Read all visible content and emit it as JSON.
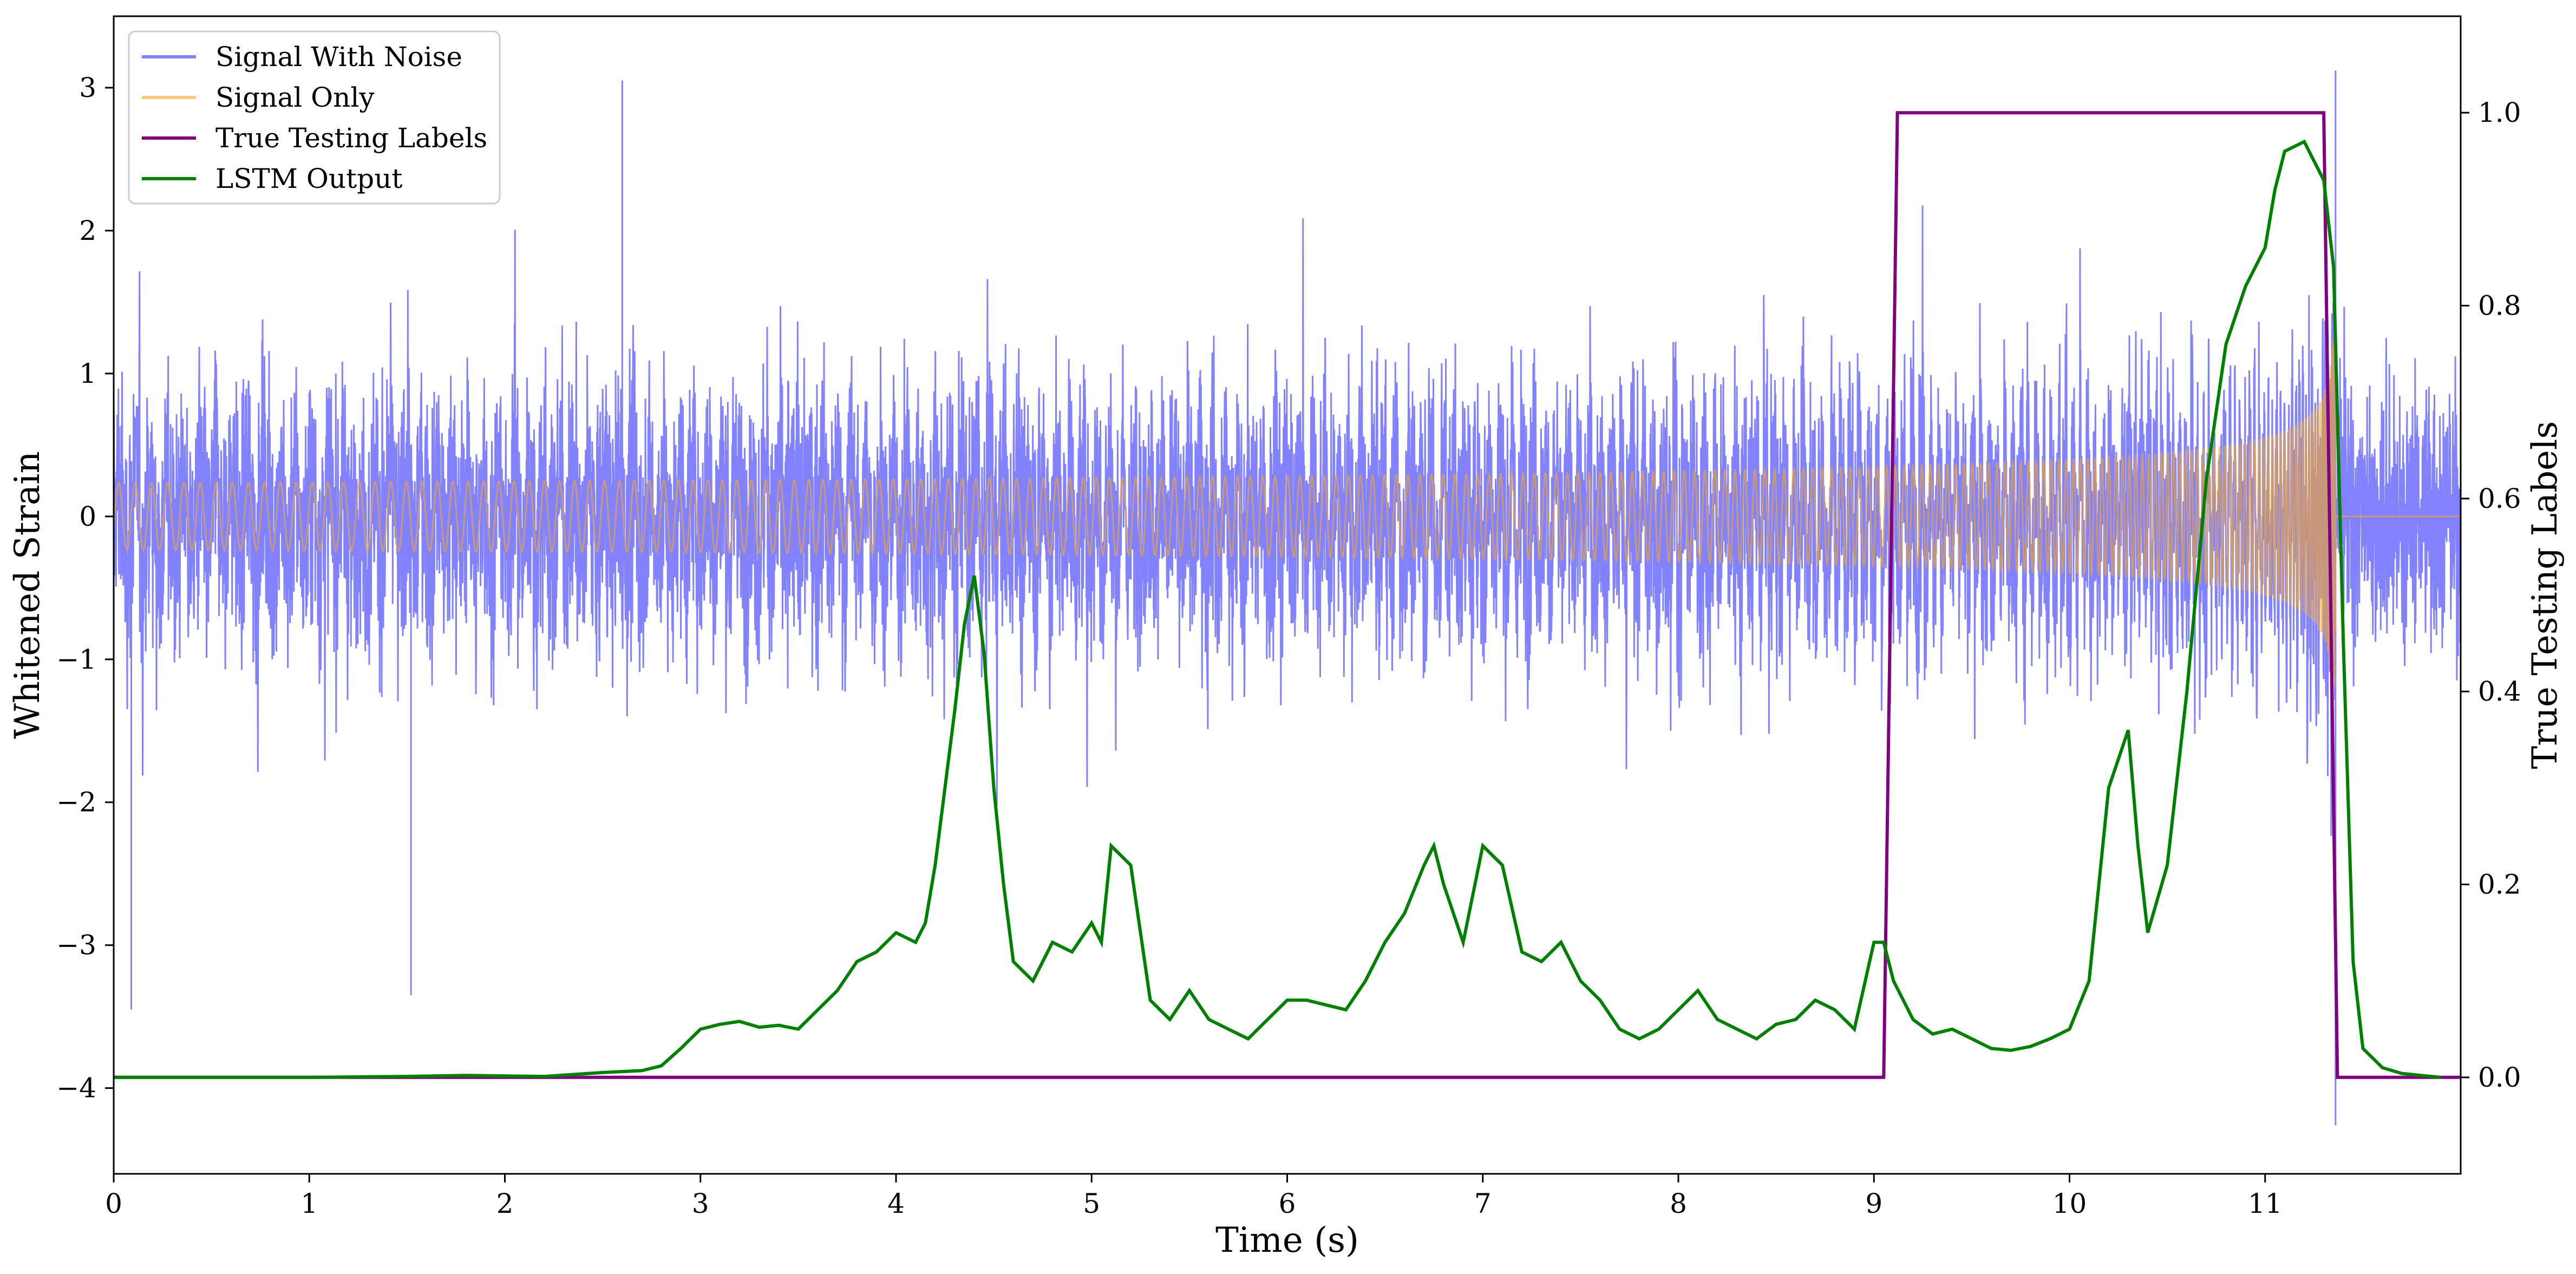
{
  "chart_data": {
    "type": "line",
    "xlabel": "Time (s)",
    "ylabel_left": "Whitened Strain",
    "ylabel_right": "True Testing Labels",
    "xlim": [
      0,
      12
    ],
    "ylim_left": [
      -4.6,
      3.5
    ],
    "ylim_right": [
      -0.1,
      1.1
    ],
    "x_ticks": [
      0,
      1,
      2,
      3,
      4,
      5,
      6,
      7,
      8,
      9,
      10,
      11
    ],
    "y_ticks_left": [
      -4,
      -3,
      -2,
      -1,
      0,
      1,
      2,
      3
    ],
    "y_ticks_right": [
      0.0,
      0.2,
      0.4,
      0.6,
      0.8,
      1.0
    ],
    "legend_position": "upper-left",
    "grid": false,
    "series": [
      {
        "name": "Signal With Noise",
        "axis": "left",
        "color": "#7b7bff",
        "description_values": {
          "typical_range": [
            -1.5,
            1.5
          ],
          "extremes": [
            {
              "x": 0.09,
              "y": -3.45
            },
            {
              "x": 1.52,
              "y": -3.35
            },
            {
              "x": 2.6,
              "y": 3.05
            },
            {
              "x": 11.36,
              "y": 3.12
            },
            {
              "x": 11.36,
              "y": -4.26
            }
          ]
        }
      },
      {
        "name": "Signal Only",
        "axis": "left",
        "color": "#f5a623",
        "chirp": {
          "t_start": 0,
          "t_merge": 11.36,
          "amp_start": 0.02,
          "amp_merge": 1.3
        }
      },
      {
        "name": "True Testing Labels",
        "axis": "right",
        "color": "#800080",
        "x": [
          0,
          9.05,
          9.12,
          11.3,
          11.37,
          12
        ],
        "y": [
          0,
          0,
          1,
          1,
          0,
          0
        ]
      },
      {
        "name": "LSTM Output",
        "axis": "right",
        "color": "#008000",
        "x": [
          0,
          1,
          1.5,
          1.8,
          2.2,
          2.5,
          2.6,
          2.7,
          2.8,
          2.9,
          3.0,
          3.1,
          3.2,
          3.3,
          3.4,
          3.5,
          3.6,
          3.7,
          3.8,
          3.9,
          4.0,
          4.1,
          4.15,
          4.2,
          4.3,
          4.35,
          4.4,
          4.45,
          4.5,
          4.55,
          4.6,
          4.7,
          4.8,
          4.9,
          5.0,
          5.05,
          5.1,
          5.2,
          5.3,
          5.4,
          5.5,
          5.6,
          5.7,
          5.8,
          5.9,
          6.0,
          6.1,
          6.2,
          6.3,
          6.4,
          6.5,
          6.6,
          6.7,
          6.75,
          6.8,
          6.9,
          7.0,
          7.1,
          7.2,
          7.3,
          7.4,
          7.5,
          7.6,
          7.7,
          7.8,
          7.9,
          8.0,
          8.1,
          8.2,
          8.3,
          8.4,
          8.5,
          8.6,
          8.7,
          8.8,
          8.9,
          9.0,
          9.05,
          9.1,
          9.2,
          9.3,
          9.4,
          9.5,
          9.6,
          9.7,
          9.8,
          9.9,
          10.0,
          10.1,
          10.2,
          10.3,
          10.35,
          10.4,
          10.5,
          10.6,
          10.7,
          10.8,
          10.9,
          11.0,
          11.05,
          11.1,
          11.2,
          11.3,
          11.35,
          11.4,
          11.45,
          11.5,
          11.6,
          11.7,
          11.8,
          11.9
        ],
        "y": [
          0,
          0,
          0.001,
          0.002,
          0.001,
          0.005,
          0.006,
          0.007,
          0.012,
          0.03,
          0.05,
          0.055,
          0.058,
          0.052,
          0.054,
          0.05,
          0.07,
          0.09,
          0.12,
          0.13,
          0.15,
          0.14,
          0.16,
          0.22,
          0.38,
          0.47,
          0.52,
          0.44,
          0.3,
          0.2,
          0.12,
          0.1,
          0.14,
          0.13,
          0.16,
          0.14,
          0.24,
          0.22,
          0.08,
          0.06,
          0.09,
          0.06,
          0.05,
          0.04,
          0.06,
          0.08,
          0.08,
          0.075,
          0.07,
          0.1,
          0.14,
          0.17,
          0.22,
          0.24,
          0.2,
          0.14,
          0.24,
          0.22,
          0.13,
          0.12,
          0.14,
          0.1,
          0.08,
          0.05,
          0.04,
          0.05,
          0.07,
          0.09,
          0.06,
          0.05,
          0.04,
          0.055,
          0.06,
          0.08,
          0.07,
          0.05,
          0.14,
          0.14,
          0.1,
          0.06,
          0.045,
          0.05,
          0.04,
          0.03,
          0.028,
          0.032,
          0.04,
          0.05,
          0.1,
          0.3,
          0.36,
          0.24,
          0.15,
          0.22,
          0.4,
          0.62,
          0.76,
          0.82,
          0.86,
          0.92,
          0.96,
          0.97,
          0.93,
          0.84,
          0.45,
          0.12,
          0.03,
          0.01,
          0.004,
          0.002,
          0
        ]
      }
    ]
  }
}
